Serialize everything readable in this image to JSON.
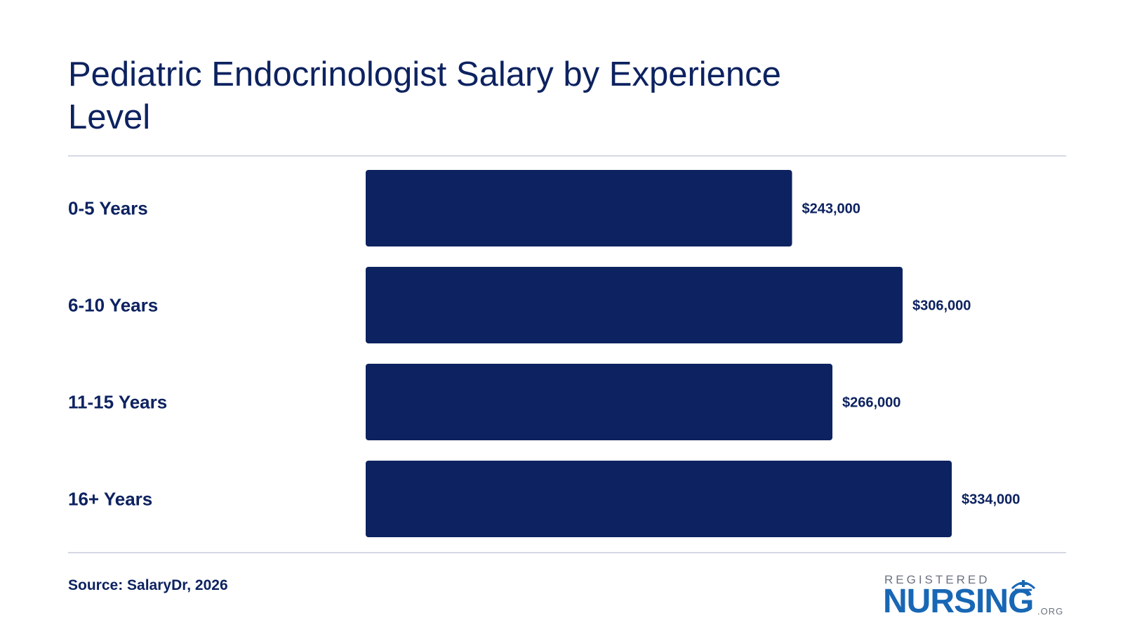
{
  "title": "Pediatric Endocrinologist Salary by Experience Level",
  "source": "Source: SalaryDr, 2026",
  "logo": {
    "top": "REGISTERED",
    "main": "NURSING",
    "suffix": ".ORG"
  },
  "colors": {
    "bar": "#0d2260",
    "text": "#0d2260",
    "rule": "#d5d8e4",
    "logo_blue": "#1867b5",
    "logo_gray": "#6b7280"
  },
  "chart_data": {
    "type": "bar",
    "orientation": "horizontal",
    "categories": [
      "0-5 Years",
      "6-10 Years",
      "11-15 Years",
      "16+ Years"
    ],
    "values": [
      243000,
      306000,
      266000,
      334000
    ],
    "value_labels": [
      "$243,000",
      "$306,000",
      "$266,000",
      "$334,000"
    ],
    "title": "Pediatric Endocrinologist Salary by Experience Level",
    "xlabel": "",
    "ylabel": "",
    "grid": false,
    "xlim": [
      0,
      334000
    ]
  }
}
